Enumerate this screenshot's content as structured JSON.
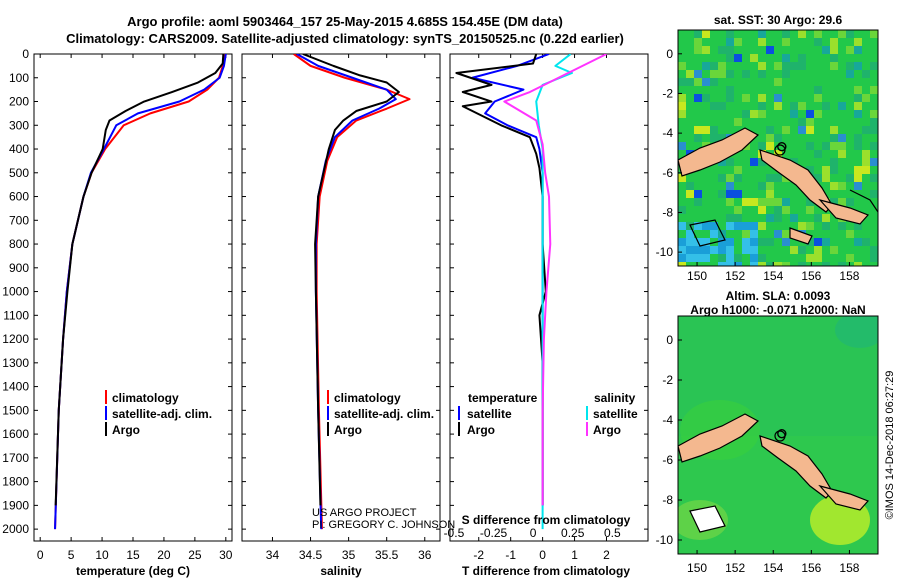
{
  "header": {
    "line1": "Argo profile: aoml 5903464_157 25-May-2015 4.685S 154.45E (DM data)",
    "line2": "Climatology: CARS2009. Satellite-adjusted climatology: synTS_20150525.nc (0.22d earlier)"
  },
  "colors": {
    "climatology": "#ff0000",
    "satellite": "#0000ff",
    "argo": "#000000",
    "sal_satellite": "#00e5ee",
    "sal_argo": "#ff33ff"
  },
  "credits": {
    "project": "US ARGO PROJECT",
    "pi": "PI: GREGORY C. JOHNSON",
    "stamp": "©IMOS 14-Dec-2018 06:27:29"
  },
  "map_top": {
    "title": "sat. SST: 30 Argo: 29.6"
  },
  "map_bottom": {
    "title1": "Altim. SLA: 0.0093",
    "title2": "Argo h1000: -0.071 h2000: NaN"
  },
  "chart_data": [
    {
      "type": "line",
      "name": "temperature-panel",
      "xlabel": "temperature (deg C)",
      "ylabel": "",
      "xlim": [
        -1,
        31
      ],
      "ylim": [
        0,
        2050
      ],
      "y_reversed": true,
      "xticks": [
        0,
        5,
        10,
        15,
        20,
        25,
        30
      ],
      "yticks": [
        0,
        100,
        200,
        300,
        400,
        500,
        600,
        700,
        800,
        900,
        1000,
        1100,
        1200,
        1300,
        1400,
        1500,
        1600,
        1700,
        1800,
        1900,
        2000
      ],
      "legend": [
        "climatology",
        "satellite-adj. clim.",
        "Argo"
      ],
      "series": [
        {
          "name": "climatology",
          "color": "#ff0000",
          "depth": [
            0,
            50,
            100,
            150,
            200,
            250,
            300,
            400,
            500,
            600,
            800,
            1000,
            1200,
            1500,
            2000
          ],
          "values": [
            29.8,
            29.5,
            28.9,
            27.0,
            24.0,
            17.8,
            13.5,
            10.5,
            8.3,
            7.0,
            5.2,
            4.3,
            3.7,
            3.0,
            2.4
          ]
        },
        {
          "name": "satellite-adj. clim.",
          "color": "#0000ff",
          "depth": [
            0,
            50,
            100,
            150,
            200,
            250,
            300,
            400,
            500,
            600,
            800,
            1000,
            1200,
            1500,
            2000
          ],
          "values": [
            30.0,
            29.7,
            29.0,
            26.5,
            22.5,
            15.8,
            12.3,
            10.3,
            8.2,
            7.0,
            5.2,
            4.3,
            3.7,
            3.0,
            2.4
          ]
        },
        {
          "name": "Argo",
          "color": "#000000",
          "depth": [
            0,
            40,
            80,
            120,
            160,
            200,
            240,
            280,
            320,
            400,
            500,
            600,
            800,
            1000,
            1200,
            1500,
            1900
          ],
          "values": [
            29.6,
            29.5,
            28.3,
            25.5,
            21.3,
            16.8,
            13.8,
            11.2,
            10.6,
            10.1,
            8.3,
            7.0,
            5.2,
            4.4,
            3.7,
            3.0,
            2.5
          ]
        }
      ]
    },
    {
      "type": "line",
      "name": "salinity-panel",
      "xlabel": "salinity",
      "xlim": [
        33.6,
        36.2
      ],
      "ylim": [
        0,
        2050
      ],
      "y_reversed": true,
      "xticks": [
        34,
        34.5,
        35,
        35.5,
        36
      ],
      "legend": [
        "climatology",
        "satellite-adj. clim.",
        "Argo"
      ],
      "series": [
        {
          "name": "climatology",
          "color": "#ff0000",
          "depth": [
            0,
            50,
            100,
            150,
            190,
            230,
            280,
            350,
            450,
            600,
            800,
            1000,
            1500,
            2000
          ],
          "values": [
            34.28,
            34.5,
            34.95,
            35.5,
            35.8,
            35.5,
            35.1,
            34.85,
            34.72,
            34.62,
            34.58,
            34.58,
            34.61,
            34.65
          ]
        },
        {
          "name": "satellite-adj. clim.",
          "color": "#0000ff",
          "depth": [
            0,
            50,
            100,
            150,
            190,
            230,
            280,
            350,
            450,
            600,
            800,
            1000,
            1500,
            2000
          ],
          "values": [
            34.32,
            34.6,
            35.05,
            35.5,
            35.62,
            35.4,
            35.05,
            34.82,
            34.7,
            34.6,
            34.57,
            34.57,
            34.6,
            34.64
          ]
        },
        {
          "name": "Argo",
          "color": "#000000",
          "depth": [
            0,
            50,
            90,
            120,
            160,
            200,
            240,
            280,
            320,
            400,
            600,
            800,
            1000,
            1500,
            1900
          ],
          "values": [
            34.4,
            34.8,
            35.15,
            35.5,
            35.66,
            35.5,
            35.1,
            34.93,
            34.82,
            34.74,
            34.6,
            34.56,
            34.57,
            34.6,
            34.63
          ]
        }
      ]
    },
    {
      "type": "line",
      "name": "difference-panel",
      "xlabel": "T difference from climatology",
      "xlabel_top": "S difference from climatology",
      "xlim": [
        -2.9,
        3.3
      ],
      "ylim": [
        0,
        2050
      ],
      "y_reversed": true,
      "xticks": [
        -2,
        -1,
        0,
        1,
        2
      ],
      "xticks_top": [
        -0.5,
        -0.25,
        0,
        0.25,
        0.5
      ],
      "legend_temperature": {
        "title": "temperature",
        "items": [
          "satellite",
          "Argo"
        ]
      },
      "legend_salinity": {
        "title": "salinity",
        "items": [
          "satellite",
          "Argo"
        ]
      },
      "series": [
        {
          "name": "T satellite",
          "color": "#0000ff",
          "depth": [
            0,
            50,
            100,
            150,
            200,
            250,
            300,
            350,
            400,
            500,
            700,
            900,
            1100,
            1300,
            1500,
            1700,
            1900
          ],
          "values": [
            0.2,
            -0.8,
            -2.2,
            -0.6,
            -1.5,
            -1.8,
            -1.1,
            -0.2,
            -0.1,
            0,
            0,
            0,
            0,
            0,
            0,
            0,
            0
          ]
        },
        {
          "name": "T Argo",
          "color": "#000000",
          "depth": [
            0,
            40,
            80,
            130,
            160,
            200,
            220,
            260,
            300,
            350,
            420,
            480,
            600,
            800,
            1000,
            1050,
            1100,
            1300,
            1500,
            1700,
            1900
          ],
          "values": [
            -0.2,
            -0.3,
            -2.7,
            -1.6,
            -2.5,
            -1.6,
            -2.5,
            -1.9,
            -1.3,
            -0.4,
            -0.2,
            -0.1,
            0.0,
            0.0,
            0.1,
            0.0,
            -0.1,
            0.0,
            0.0,
            0.0,
            0.0
          ]
        },
        {
          "name": "S satellite",
          "color": "#00e5ee",
          "depth": [
            0,
            50,
            80,
            130,
            200,
            300,
            400,
            500,
            700,
            1000,
            1500,
            2000
          ],
          "values": [
            0.22,
            0.1,
            0.23,
            0.0,
            -0.05,
            -0.03,
            0.0,
            0.0,
            0.0,
            0.0,
            0.0,
            0.0
          ]
        },
        {
          "name": "S Argo",
          "color": "#ff33ff",
          "depth": [
            0,
            40,
            80,
            120,
            160,
            200,
            280,
            380,
            500,
            600,
            800,
            1000,
            1200,
            1500,
            1900
          ],
          "values": [
            0.5,
            0.35,
            0.2,
            0.05,
            -0.1,
            -0.3,
            -0.05,
            0.0,
            0.02,
            0.05,
            0.06,
            0.03,
            0.01,
            0.0,
            0.0
          ]
        }
      ]
    },
    {
      "type": "heatmap",
      "name": "sst-map",
      "title": "sat. SST: 30 Argo: 29.6",
      "xlim": [
        149,
        159.5
      ],
      "ylim": [
        -10.7,
        1.2
      ],
      "xticks": [
        150,
        152,
        154,
        156,
        158
      ],
      "yticks": [
        0,
        -2,
        -4,
        -6,
        -8,
        -10
      ],
      "argo_position": [
        154.45,
        -4.685
      ]
    },
    {
      "type": "heatmap",
      "name": "sla-map",
      "title": "Altim. SLA: 0.0093",
      "xlim": [
        149,
        159.5
      ],
      "ylim": [
        -10.7,
        1.2
      ],
      "xticks": [
        150,
        152,
        154,
        156,
        158
      ],
      "yticks": [
        0,
        -2,
        -4,
        -6,
        -8,
        -10
      ],
      "argo_position": [
        154.45,
        -4.685
      ]
    }
  ]
}
